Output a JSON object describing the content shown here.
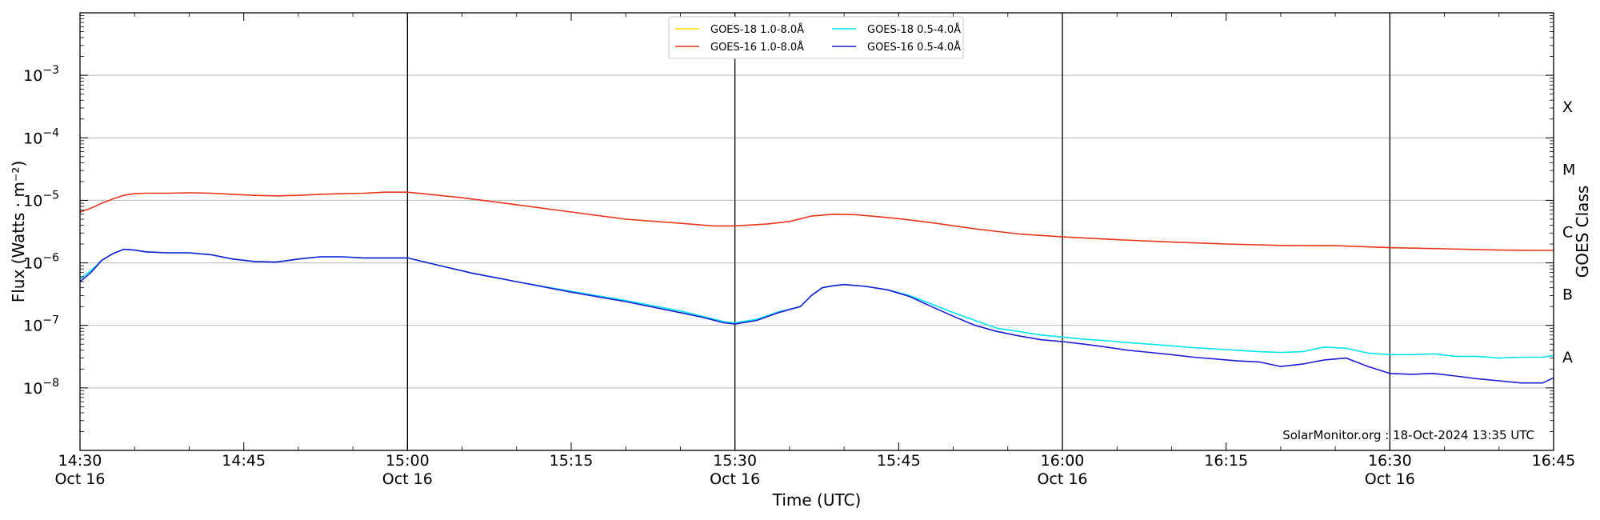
{
  "chart_data": {
    "type": "line",
    "xlabel": "Time (UTC)",
    "ylabel": "Flux (Watts · m⁻²)",
    "y2label": "GOES Class",
    "yscale": "log",
    "ylim": [
      1e-09,
      0.01
    ],
    "xlim": [
      "14:30",
      "16:45"
    ],
    "grid": true,
    "legend_position": "top-center",
    "watermark": "SolarMonitor.org : 18-Oct-2024 13:35 UTC",
    "x_ticks": [
      {
        "t": 0,
        "line1": "14:30",
        "line2": "Oct 16"
      },
      {
        "t": 15,
        "line1": "14:45",
        "line2": ""
      },
      {
        "t": 30,
        "line1": "15:00",
        "line2": "Oct 16"
      },
      {
        "t": 45,
        "line1": "15:15",
        "line2": ""
      },
      {
        "t": 60,
        "line1": "15:30",
        "line2": "Oct 16"
      },
      {
        "t": 75,
        "line1": "15:45",
        "line2": ""
      },
      {
        "t": 90,
        "line1": "16:00",
        "line2": "Oct 16"
      },
      {
        "t": 105,
        "line1": "16:15",
        "line2": ""
      },
      {
        "t": 120,
        "line1": "16:30",
        "line2": "Oct 16"
      },
      {
        "t": 135,
        "line1": "16:45",
        "line2": ""
      }
    ],
    "vlines_at": [
      30,
      60,
      90,
      120
    ],
    "y_ticks": [
      {
        "exp": -8,
        "label": "10",
        "sup": "−8"
      },
      {
        "exp": -7,
        "label": "10",
        "sup": "−7"
      },
      {
        "exp": -6,
        "label": "10",
        "sup": "−6"
      },
      {
        "exp": -5,
        "label": "10",
        "sup": "−5"
      },
      {
        "exp": -4,
        "label": "10",
        "sup": "−4"
      },
      {
        "exp": -3,
        "label": "10",
        "sup": "−3"
      }
    ],
    "goes_classes": [
      {
        "label": "A",
        "exp": -7.5
      },
      {
        "label": "B",
        "exp": -6.5
      },
      {
        "label": "C",
        "exp": -5.5
      },
      {
        "label": "M",
        "exp": -4.5
      },
      {
        "label": "X",
        "exp": -3.5
      }
    ],
    "series": [
      {
        "name": "GOES-18 1.0-8.0Å",
        "color": "#ffd700",
        "x": [
          0,
          135
        ],
        "y": [
          null,
          null
        ]
      },
      {
        "name": "GOES-18 0.5-4.0Å",
        "color": "#00e5ee",
        "x": [
          0,
          1,
          2,
          3,
          4,
          5,
          6,
          8,
          10,
          12,
          14,
          16,
          18,
          20,
          22,
          24,
          26,
          28,
          30,
          33,
          36,
          40,
          45,
          50,
          55,
          57,
          59,
          60,
          62,
          64,
          65,
          66,
          67,
          68,
          69,
          70,
          72,
          74,
          76,
          78,
          80,
          82,
          84,
          86,
          88,
          90,
          92,
          94,
          96,
          98,
          100,
          102,
          104,
          106,
          108,
          110,
          112,
          114,
          116,
          118,
          120,
          122,
          124,
          126,
          128,
          130,
          132,
          134,
          135
        ],
        "y": [
          5.5e-07,
          7.5e-07,
          1.1e-06,
          1.4e-06,
          1.65e-06,
          1.6e-06,
          1.5e-06,
          1.45e-06,
          1.45e-06,
          1.35e-06,
          1.15e-06,
          1.05e-06,
          1.03e-06,
          1.15e-06,
          1.25e-06,
          1.25e-06,
          1.2e-06,
          1.2e-06,
          1.2e-06,
          9e-07,
          6.8e-07,
          5e-07,
          3.5e-07,
          2.5e-07,
          1.7e-07,
          1.4e-07,
          1.15e-07,
          1.1e-07,
          1.25e-07,
          1.65e-07,
          1.8e-07,
          2e-07,
          3e-07,
          4e-07,
          4.3e-07,
          4.5e-07,
          4.2e-07,
          3.7e-07,
          3e-07,
          2.2e-07,
          1.6e-07,
          1.2e-07,
          9e-08,
          8e-08,
          7e-08,
          6.5e-08,
          6e-08,
          5.7e-08,
          5.3e-08,
          5e-08,
          4.7e-08,
          4.4e-08,
          4.2e-08,
          4e-08,
          3.8e-08,
          3.7e-08,
          3.8e-08,
          4.5e-08,
          4.3e-08,
          3.6e-08,
          3.4e-08,
          3.4e-08,
          3.5e-08,
          3.2e-08,
          3.2e-08,
          3e-08,
          3.1e-08,
          3.1e-08,
          3.3e-08
        ]
      },
      {
        "name": "GOES-16 1.0-8.0Å",
        "color": "#e8341a",
        "x": [
          0,
          1,
          2,
          3,
          4,
          5,
          6,
          8,
          10,
          12,
          14,
          16,
          18,
          20,
          22,
          24,
          26,
          28,
          30,
          32,
          35,
          40,
          45,
          50,
          55,
          58,
          60,
          63,
          65,
          67,
          69,
          71,
          73,
          75,
          78,
          82,
          86,
          90,
          95,
          100,
          105,
          110,
          115,
          120,
          125,
          130,
          135
        ],
        "y": [
          6.5e-06,
          7.5e-06,
          9e-06,
          1.05e-05,
          1.2e-05,
          1.28e-05,
          1.3e-05,
          1.3e-05,
          1.32e-05,
          1.3e-05,
          1.25e-05,
          1.2e-05,
          1.18e-05,
          1.2e-05,
          1.25e-05,
          1.28e-05,
          1.3e-05,
          1.35e-05,
          1.35e-05,
          1.25e-05,
          1.1e-05,
          8.5e-06,
          6.5e-06,
          5e-06,
          4.3e-06,
          3.9e-06,
          3.9e-06,
          4.2e-06,
          4.6e-06,
          5.6e-06,
          6e-06,
          5.9e-06,
          5.5e-06,
          5.1e-06,
          4.4e-06,
          3.5e-06,
          2.9e-06,
          2.6e-06,
          2.35e-06,
          2.15e-06,
          2e-06,
          1.9e-06,
          1.88e-06,
          1.75e-06,
          1.68e-06,
          1.6e-06,
          1.58e-06
        ]
      },
      {
        "name": "GOES-16 0.5-4.0Å",
        "color": "#1c1cd6",
        "x": [
          0,
          1,
          2,
          3,
          4,
          5,
          6,
          8,
          10,
          12,
          14,
          16,
          18,
          20,
          22,
          24,
          26,
          28,
          30,
          33,
          36,
          40,
          45,
          50,
          55,
          57,
          59,
          60,
          62,
          64,
          65,
          66,
          67,
          68,
          69,
          70,
          72,
          74,
          76,
          78,
          80,
          82,
          84,
          86,
          88,
          90,
          92,
          94,
          96,
          98,
          100,
          102,
          104,
          106,
          108,
          110,
          112,
          114,
          116,
          118,
          120,
          122,
          124,
          126,
          128,
          130,
          132,
          134,
          135
        ],
        "y": [
          5e-07,
          7e-07,
          1.1e-06,
          1.4e-06,
          1.65e-06,
          1.6e-06,
          1.5e-06,
          1.45e-06,
          1.45e-06,
          1.35e-06,
          1.15e-06,
          1.05e-06,
          1.03e-06,
          1.15e-06,
          1.25e-06,
          1.25e-06,
          1.2e-06,
          1.2e-06,
          1.2e-06,
          9e-07,
          6.8e-07,
          5e-07,
          3.4e-07,
          2.4e-07,
          1.6e-07,
          1.35e-07,
          1.1e-07,
          1.05e-07,
          1.2e-07,
          1.6e-07,
          1.8e-07,
          2e-07,
          3e-07,
          4e-07,
          4.3e-07,
          4.5e-07,
          4.2e-07,
          3.7e-07,
          2.9e-07,
          2e-07,
          1.4e-07,
          1e-07,
          8e-08,
          6.8e-08,
          5.9e-08,
          5.5e-08,
          5e-08,
          4.5e-08,
          4e-08,
          3.7e-08,
          3.4e-08,
          3.1e-08,
          2.9e-08,
          2.7e-08,
          2.6e-08,
          2.2e-08,
          2.4e-08,
          2.8e-08,
          3e-08,
          2.2e-08,
          1.7e-08,
          1.65e-08,
          1.7e-08,
          1.55e-08,
          1.4e-08,
          1.3e-08,
          1.2e-08,
          1.2e-08,
          1.45e-08
        ]
      }
    ]
  }
}
